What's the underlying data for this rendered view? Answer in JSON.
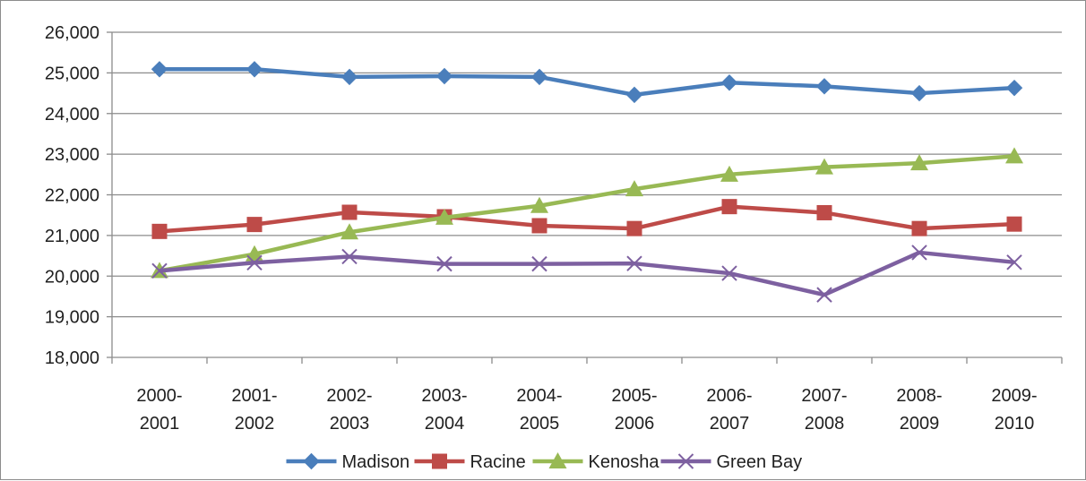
{
  "chart_data": {
    "type": "line",
    "title": "",
    "xlabel": "",
    "ylabel": "",
    "ylim": [
      18000,
      26000
    ],
    "y_ticks": [
      "18,000",
      "19,000",
      "20,000",
      "21,000",
      "22,000",
      "23,000",
      "24,000",
      "25,000",
      "26,000"
    ],
    "y_tick_values": [
      18000,
      19000,
      20000,
      21000,
      22000,
      23000,
      24000,
      25000,
      26000
    ],
    "grid": true,
    "legend_position": "bottom",
    "categories": [
      [
        "2000-",
        "2001"
      ],
      [
        "2001-",
        "2002"
      ],
      [
        "2002-",
        "2003"
      ],
      [
        "2003-",
        "2004"
      ],
      [
        "2004-",
        "2005"
      ],
      [
        "2005-",
        "2006"
      ],
      [
        "2006-",
        "2007"
      ],
      [
        "2007-",
        "2008"
      ],
      [
        "2008-",
        "2009"
      ],
      [
        "2009-",
        "2010"
      ]
    ],
    "series": [
      {
        "name": "Madison",
        "color": "#4a7ebb",
        "marker": "diamond",
        "values": [
          25090,
          25090,
          24900,
          24920,
          24900,
          24460,
          24760,
          24670,
          24500,
          24630
        ]
      },
      {
        "name": "Racine",
        "color": "#be4b48",
        "marker": "square",
        "values": [
          21100,
          21270,
          21570,
          21460,
          21240,
          21170,
          21710,
          21560,
          21170,
          21280
        ]
      },
      {
        "name": "Kenosha",
        "color": "#98b954",
        "marker": "triangle",
        "values": [
          20130,
          20540,
          21080,
          21440,
          21730,
          22140,
          22500,
          22680,
          22780,
          22950
        ]
      },
      {
        "name": "Green Bay",
        "color": "#7d60a0",
        "marker": "x",
        "values": [
          20130,
          20330,
          20480,
          20300,
          20300,
          20310,
          20070,
          19540,
          20580,
          20340
        ]
      }
    ]
  }
}
